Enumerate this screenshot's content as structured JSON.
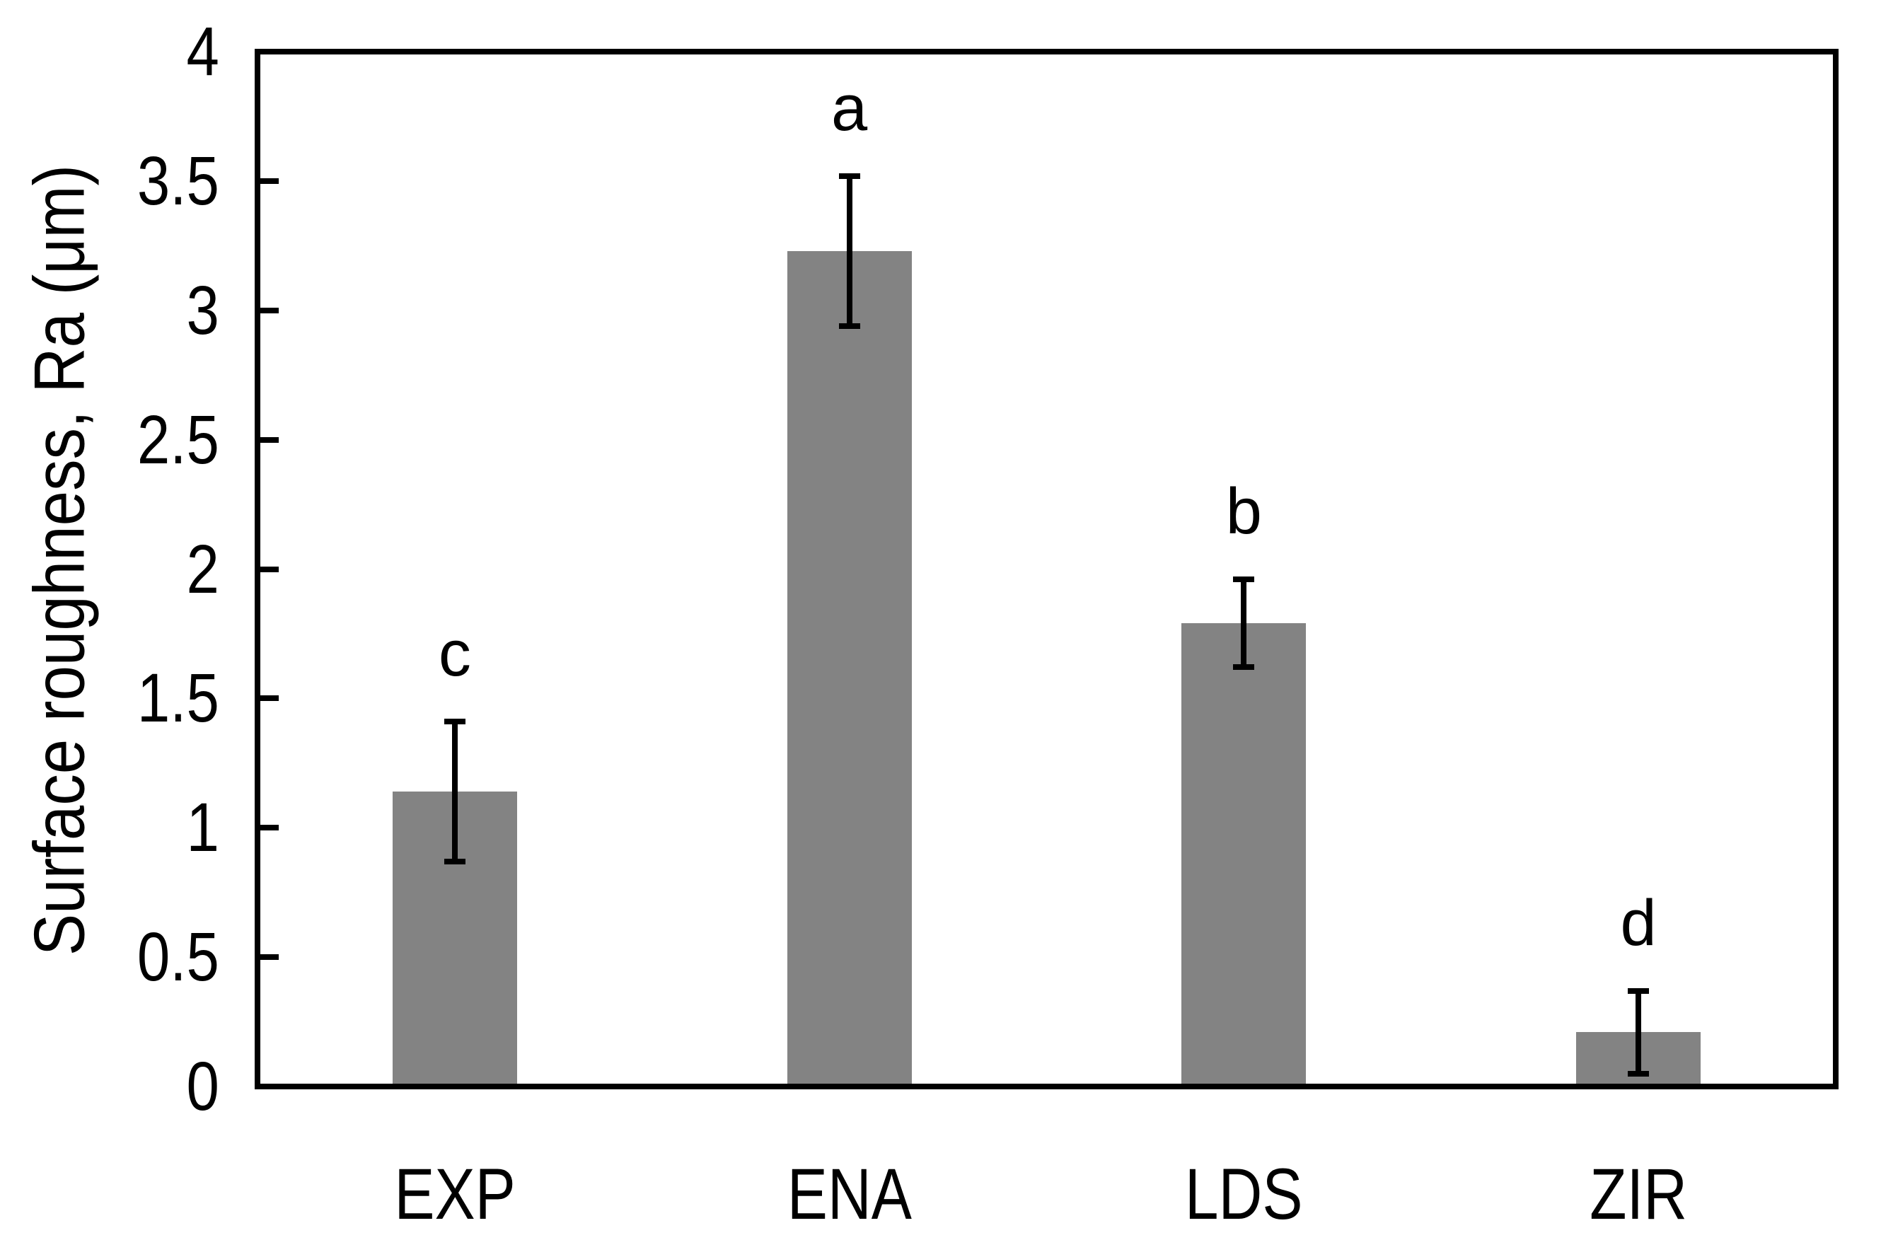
{
  "figure": {
    "background_color": "#ffffff",
    "text_color": "#000000"
  },
  "chart_data": {
    "type": "bar",
    "title": "",
    "xlabel": "",
    "ylabel": "Surface roughness, Ra (μm)",
    "categories": [
      "EXP",
      "ENA",
      "LDS",
      "ZIR"
    ],
    "values": [
      1.14,
      3.23,
      1.79,
      0.21
    ],
    "errors": [
      0.27,
      0.29,
      0.17,
      0.16
    ],
    "significance_letters": [
      "c",
      "a",
      "b",
      "d"
    ],
    "ylim": [
      0,
      4
    ],
    "yticks": [
      0,
      0.5,
      1,
      1.5,
      2,
      2.5,
      3,
      3.5,
      4
    ],
    "ytick_labels": [
      "0",
      "0.5",
      "1",
      "1.5",
      "2",
      "2.5",
      "3",
      "3.5",
      "4"
    ],
    "grid": false,
    "legend": "none",
    "bar_color": "#838383",
    "axis_color": "#000000",
    "error_bar_color": "#000000"
  }
}
